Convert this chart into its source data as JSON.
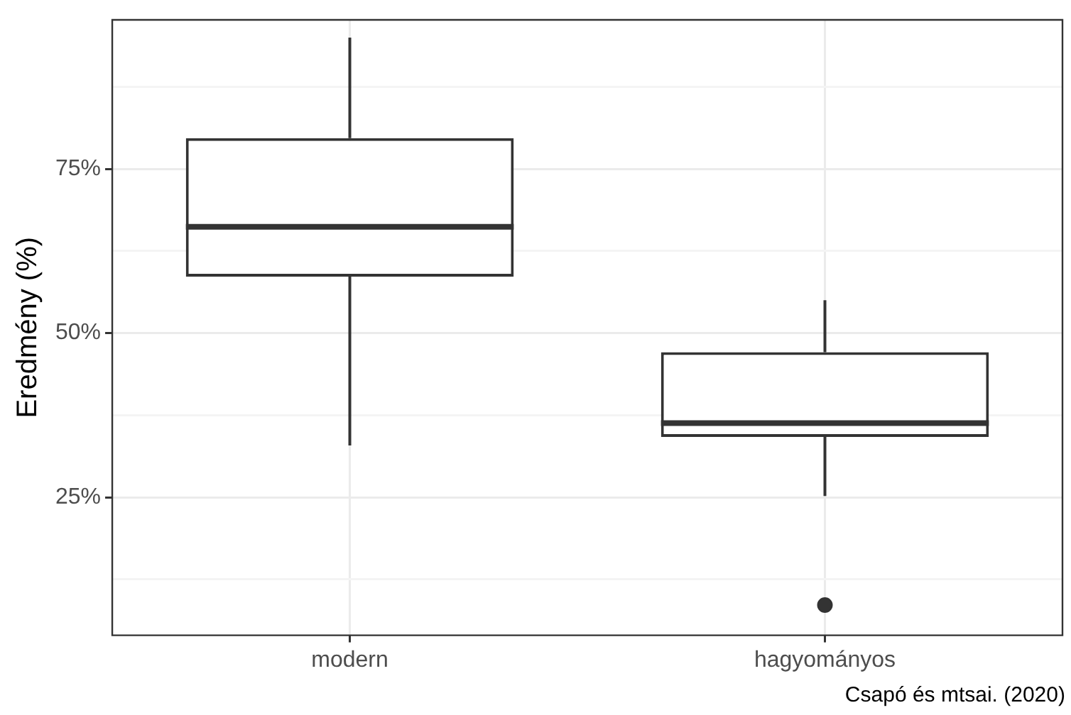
{
  "chart_data": {
    "type": "box",
    "ylabel": "Eredmény (%)",
    "categories": [
      "modern",
      "hagyományos"
    ],
    "boxes": [
      {
        "low": 32.9,
        "q1": 58.6,
        "median": 66.2,
        "q3": 79.7,
        "high": 95.0
      },
      {
        "low": 25.2,
        "q1": 34.2,
        "median": 36.3,
        "q3": 47.1,
        "high": 55.0,
        "outliers": [
          8.6
        ]
      }
    ],
    "color": "#333333",
    "ylim": [
      4,
      97.7
    ],
    "yticks": [
      {
        "value": 12.5,
        "label": null
      },
      {
        "value": 25,
        "label": "25%"
      },
      {
        "value": 37.5,
        "label": null
      },
      {
        "value": 50,
        "label": "50%"
      },
      {
        "value": 62.5,
        "label": null
      },
      {
        "value": 75,
        "label": "75%"
      },
      {
        "value": 87.5,
        "label": null
      }
    ],
    "grid": true,
    "annotations": [
      "Csapó és mtsai. (2020)"
    ]
  }
}
